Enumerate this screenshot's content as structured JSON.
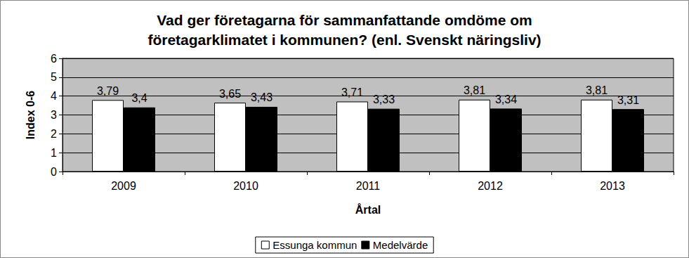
{
  "chart_data": {
    "type": "bar",
    "title": "Vad ger företagarna för sammanfattande omdöme om\nföretagarklimatet i kommunen? (enl. Svenskt näringsliv)",
    "x_label": "Årtal",
    "y_label": "Index 0-6",
    "categories": [
      "2009",
      "2010",
      "2011",
      "2012",
      "2013"
    ],
    "series": [
      {
        "name": "Essunga kommun",
        "color": "#ffffff",
        "values": [
          3.79,
          3.65,
          3.71,
          3.81,
          3.81
        ],
        "value_labels": [
          "3,79",
          "3,65",
          "3,71",
          "3,81",
          "3,81"
        ]
      },
      {
        "name": "Medelvärde",
        "color": "#000000",
        "values": [
          3.4,
          3.43,
          3.33,
          3.34,
          3.31
        ],
        "value_labels": [
          "3,4",
          "3,43",
          "3,33",
          "3,34",
          "3,31"
        ]
      }
    ],
    "ylim": [
      0,
      6
    ],
    "yticks": [
      0,
      1,
      2,
      3,
      4,
      5,
      6
    ],
    "grid": true,
    "legend": "bottom",
    "data_labels": true
  }
}
